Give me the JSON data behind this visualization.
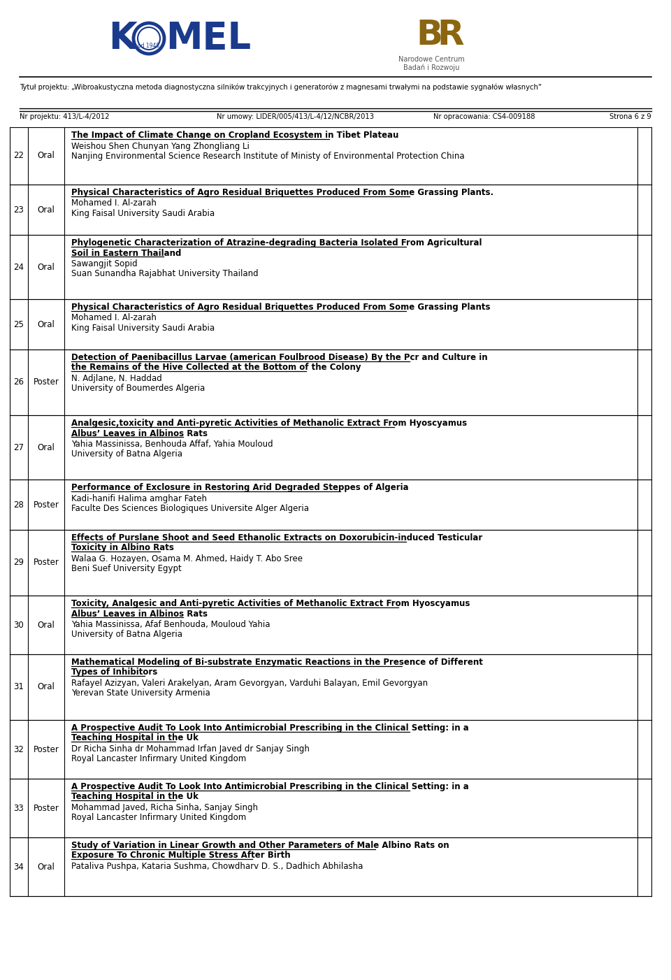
{
  "page_bg": "#ffffff",
  "subtitle_line1": "Tytuł projektu: „Wibroakustyczna metoda diagnostyczna silników trakcyjnych i generatorów z magnesami trwałymi na podstawie sygnałów własnych”",
  "footer_left": "Nr projektu: 413/L-4/2012",
  "footer_mid": "Nr umowy: LIDER/005/413/L-4/12/NCBR/2013",
  "footer_right": "Nr opracowania: CS4-009188",
  "footer_page": "Strona 6 z 9",
  "rows": [
    {
      "num": "22",
      "type": "Oral",
      "title": "The Impact of Climate Change on Cropland Ecosystem in Tibet Plateau",
      "authors": "Weishou Shen Chunyan Yang Zhongliang Li",
      "affil": "Nanjing Environmental Science Research Institute of Ministy of Environmental Protection China"
    },
    {
      "num": "23",
      "type": "Oral",
      "title": "Physical Characteristics of Agro Residual Briquettes Produced From Some Grassing Plants.",
      "authors": "Mohamed I. Al-zarah",
      "affil": "King Faisal University Saudi Arabia"
    },
    {
      "num": "24",
      "type": "Oral",
      "title": "Phylogenetic Characterization of Atrazine-degrading Bacteria Isolated From Agricultural\nSoil in Eastern Thailand",
      "authors": "Sawangjit Sopid",
      "affil": "Suan Sunandha Rajabhat University Thailand"
    },
    {
      "num": "25",
      "type": "Oral",
      "title": "Physical Characteristics of Agro Residual Briquettes Produced From Some Grassing Plants",
      "authors": "Mohamed I. Al-zarah",
      "affil": "King Faisal University Saudi Arabia"
    },
    {
      "num": "26",
      "type": "Poster",
      "title": "Detection of Paenibacillus Larvae (american Foulbrood Disease) By the Pcr and Culture in\nthe Remains of the Hive Collected at the Bottom of the Colony",
      "authors": "N. Adjlane, N. Haddad",
      "affil": "University of Boumerdes Algeria"
    },
    {
      "num": "27",
      "type": "Oral",
      "title": "Analgesic,toxicity and Anti-pyretic Activities of Methanolic Extract From Hyoscyamus\nAlbus’ Leaves in Albinos Rats",
      "authors": "Yahia Massinissa, Benhouda Affaf, Yahia Mouloud",
      "affil": "University of Batna Algeria"
    },
    {
      "num": "28",
      "type": "Poster",
      "title": "Performance of Exclosure in Restoring Arid Degraded Steppes of Algeria",
      "authors": "Kadi-hanifi Halima amghar Fateh",
      "affil": "Faculte Des Sciences Biologiques Universite Alger Algeria"
    },
    {
      "num": "29",
      "type": "Poster",
      "title": "Effects of Purslane Shoot and Seed Ethanolic Extracts on Doxorubicin-induced Testicular\nToxicity in Albino Rats",
      "authors": "Walaa G. Hozayen, Osama M. Ahmed, Haidy T. Abo Sree",
      "affil": "Beni Suef University Egypt"
    },
    {
      "num": "30",
      "type": "Oral",
      "title": "Toxicity, Analgesic and Anti-pyretic Activities of Methanolic Extract From Hyoscyamus\nAlbus’ Leaves in Albinos Rats",
      "authors": "Yahia Massinissa, Afaf Benhouda, Mouloud Yahia",
      "affil": "University of Batna Algeria"
    },
    {
      "num": "31",
      "type": "Oral",
      "title": "Mathematical Modeling of Bi-substrate Enzymatic Reactions in the Presence of Different\nTypes of Inhibitors",
      "authors": "Rafayel Azizyan, Valeri Arakelyan, Aram Gevorgyan, Varduhi Balayan, Emil Gevorgyan",
      "affil": "Yerevan State University Armenia"
    },
    {
      "num": "32",
      "type": "Poster",
      "title": "A Prospective Audit To Look Into Antimicrobial Prescribing in the Clinical Setting: in a\nTeaching Hospital in the Uk",
      "authors": "Dr Richa Sinha dr Mohammad Irfan Javed dr Sanjay Singh",
      "affil": "Royal Lancaster Infirmary United Kingdom"
    },
    {
      "num": "33",
      "type": "Poster",
      "title": "A Prospective Audit To Look Into Antimicrobial Prescribing in the Clinical Setting: in a\nTeaching Hospital in the Uk",
      "authors": "Mohammad Javed, Richa Sinha, Sanjay Singh",
      "affil": "Royal Lancaster Infirmary United Kingdom"
    },
    {
      "num": "34",
      "type": "Oral",
      "title": "Study of Variation in Linear Growth and Other Parameters of Male Albino Rats on\nExposure To Chronic Multiple Stress After Birth",
      "authors": "Pataliva Pushpa, Kataria Sushma, Chowdharv D. S., Dadhich Abhilasha",
      "affil": ""
    }
  ]
}
